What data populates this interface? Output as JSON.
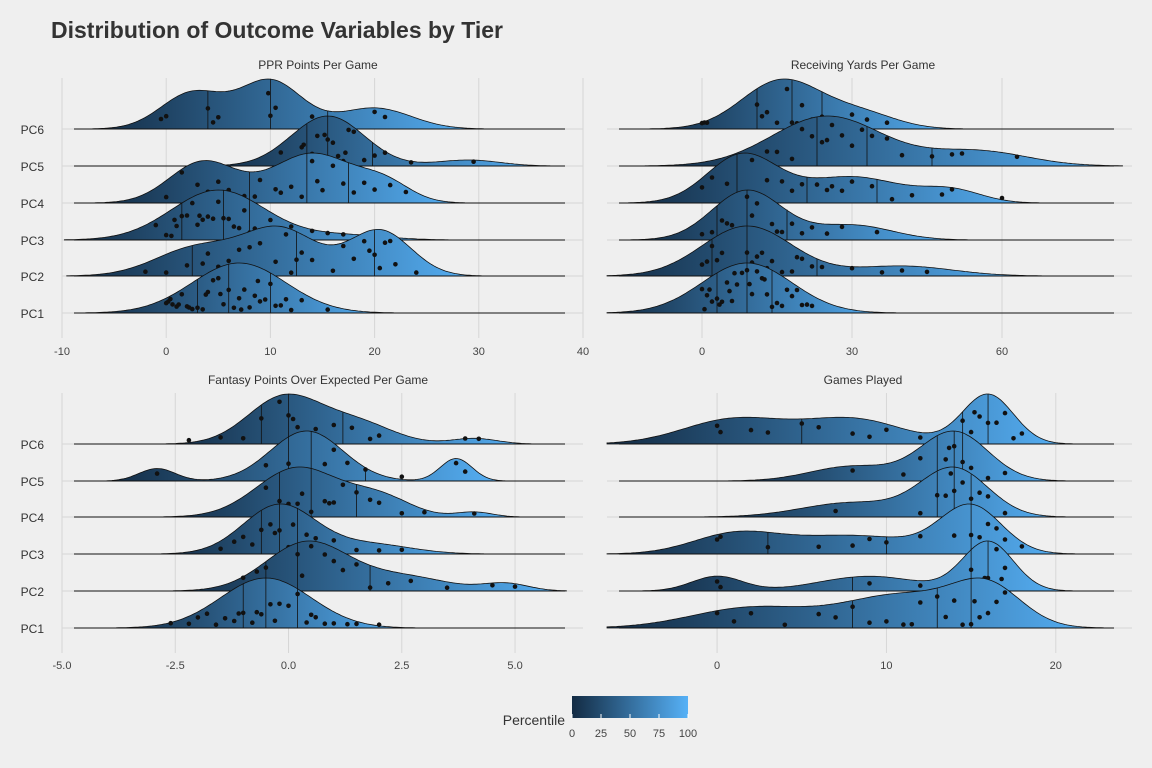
{
  "title": "Distribution of Outcome Variables by Tier",
  "legend": {
    "title": "Percentile",
    "ticks": [
      0,
      25,
      50,
      75,
      100
    ],
    "color_low": "#132b43",
    "color_high": "#56b1f7"
  },
  "chart_data": [
    {
      "type": "ridgeline",
      "title": "PPR Points Per Game",
      "categories": [
        "PC1",
        "PC2",
        "PC3",
        "PC4",
        "PC5",
        "PC6"
      ],
      "xlim": [
        -10,
        40
      ],
      "xticks": [
        -10,
        0,
        10,
        20,
        30,
        40
      ],
      "grid": true,
      "series": [
        {
          "name": "PC1",
          "components": [
            {
              "m": 7,
              "s": 4.5,
              "w": 1
            }
          ],
          "quartiles": [
            3,
            6,
            10
          ],
          "points": [
            0,
            0.4,
            1,
            1.5,
            2,
            2.5,
            3,
            3.5,
            4,
            4.5,
            5,
            5.5,
            6,
            6.5,
            7,
            7.5,
            8,
            8.5,
            9,
            9.5,
            10,
            10.5,
            11,
            12,
            13,
            15.5,
            0.6,
            2.2,
            3.8,
            5.2,
            7.2,
            8.8,
            11.5,
            0.2,
            1.2
          ]
        },
        {
          "name": "PC2",
          "components": [
            {
              "m": 3,
              "s": 4,
              "w": 0.5
            },
            {
              "m": 11,
              "s": 3.5,
              "w": 0.8
            },
            {
              "m": 20.5,
              "s": 3,
              "w": 0.8
            }
          ],
          "quartiles": [
            2.5,
            12.5,
            20
          ],
          "points": [
            0,
            2,
            3.5,
            5,
            6,
            7,
            9,
            10.5,
            11.5,
            12,
            12.5,
            13,
            14,
            16,
            17,
            18,
            19,
            19.5,
            20,
            20.5,
            21,
            21.5,
            22,
            24,
            -2,
            4,
            8
          ]
        },
        {
          "name": "PC3",
          "components": [
            {
              "m": 5,
              "s": 4.5,
              "w": 1
            },
            {
              "m": 17,
              "s": 4,
              "w": 0.1
            }
          ],
          "quartiles": [
            1.5,
            5.5,
            8
          ],
          "points": [
            0,
            0.5,
            1,
            1.5,
            2,
            2.5,
            3,
            3.5,
            4,
            4.5,
            5,
            5.5,
            6,
            6.5,
            7,
            7.5,
            8,
            8.5,
            10,
            12,
            14,
            15.5,
            17,
            -1,
            0.8,
            3.2
          ]
        },
        {
          "name": "PC4",
          "components": [
            {
              "m": 3.5,
              "s": 3.2,
              "w": 0.7
            },
            {
              "m": 14,
              "s": 4,
              "w": 0.85
            },
            {
              "m": 21,
              "s": 2.5,
              "w": 0.3
            }
          ],
          "quartiles": [
            8,
            13.5,
            17.5
          ],
          "points": [
            0,
            1.5,
            3,
            4,
            5,
            6,
            7.5,
            9,
            10.5,
            12,
            13,
            14,
            15,
            16,
            17,
            18,
            19,
            20,
            21.5,
            23,
            8.5,
            11,
            14.5
          ]
        },
        {
          "name": "PC5",
          "components": [
            {
              "m": 15.5,
              "s": 3.5,
              "w": 1
            },
            {
              "m": 29,
              "s": 3,
              "w": 0.12
            }
          ],
          "quartiles": [
            13.5,
            15.5,
            19.8
          ],
          "points": [
            11,
            12,
            13,
            14,
            14.5,
            15,
            15.5,
            16,
            16.5,
            17,
            17.5,
            18,
            19,
            20,
            21,
            23.5,
            29.5,
            13.2,
            15.2,
            17.2
          ]
        },
        {
          "name": "PC6",
          "components": [
            {
              "m": 2.5,
              "s": 3,
              "w": 0.6
            },
            {
              "m": 10,
              "s": 3,
              "w": 0.8
            },
            {
              "m": 20,
              "s": 3.5,
              "w": 0.35
            }
          ],
          "quartiles": [
            4,
            10,
            15.5
          ],
          "points": [
            0,
            4,
            4.5,
            10,
            10.5,
            14,
            16,
            20,
            21,
            -0.5,
            5,
            9.8
          ]
        }
      ]
    },
    {
      "type": "ridgeline",
      "title": "Receiving Yards Per Game",
      "categories": [
        "PC1",
        "PC2",
        "PC3",
        "PC4",
        "PC5",
        "PC6"
      ],
      "xlim": [
        -19,
        86
      ],
      "xticks": [
        0,
        30,
        60
      ],
      "grid": true,
      "series": [
        {
          "name": "PC1",
          "components": [
            {
              "m": 9,
              "s": 9,
              "w": 1
            }
          ],
          "quartiles": [
            3,
            9,
            14
          ],
          "points": [
            0,
            0.5,
            1,
            2,
            3,
            4,
            5,
            5.5,
            6,
            7,
            8,
            9,
            10,
            11,
            12,
            13,
            14,
            15,
            16,
            17,
            18,
            19,
            20,
            21,
            22,
            3.5,
            6.5,
            9.5,
            12.5,
            1.5
          ]
        },
        {
          "name": "PC2",
          "components": [
            {
              "m": 9,
              "s": 9,
              "w": 1
            },
            {
              "m": 40,
              "s": 10,
              "w": 0.2
            }
          ],
          "quartiles": [
            2,
            9,
            23
          ],
          "points": [
            0,
            1,
            2,
            4,
            6,
            8,
            9,
            10,
            11,
            12,
            14,
            16,
            18,
            20,
            22,
            24,
            30,
            36,
            40,
            45,
            3,
            7,
            13,
            19
          ]
        },
        {
          "name": "PC3",
          "components": [
            {
              "m": 9,
              "s": 7,
              "w": 1
            },
            {
              "m": 30,
              "s": 8,
              "w": 0.3
            }
          ],
          "quartiles": [
            3,
            9,
            17
          ],
          "points": [
            0,
            2,
            4,
            6,
            8,
            9,
            10,
            12,
            14,
            16,
            18,
            20,
            22,
            25,
            28,
            35,
            5,
            11,
            15
          ]
        },
        {
          "name": "PC4",
          "components": [
            {
              "m": 8,
              "s": 7,
              "w": 1
            },
            {
              "m": 30,
              "s": 10,
              "w": 0.55
            },
            {
              "m": 50,
              "s": 6,
              "w": 0.25
            }
          ],
          "quartiles": [
            7,
            21,
            35
          ],
          "points": [
            0,
            2,
            5,
            7,
            10,
            13,
            16,
            18,
            20,
            23,
            25,
            28,
            30,
            34,
            38,
            42,
            48,
            50,
            60,
            8,
            26
          ]
        },
        {
          "name": "PC5",
          "components": [
            {
              "m": 25,
              "s": 11,
              "w": 1
            },
            {
              "m": 55,
              "s": 10,
              "w": 0.3
            }
          ],
          "quartiles": [
            23,
            33,
            46
          ],
          "points": [
            13,
            15,
            18,
            20,
            22,
            24,
            26,
            28,
            30,
            32,
            34,
            40,
            46,
            50,
            52,
            63,
            25,
            37
          ]
        },
        {
          "name": "PC6",
          "components": [
            {
              "m": 16,
              "s": 8,
              "w": 1
            },
            {
              "m": 32,
              "s": 7,
              "w": 0.3
            }
          ],
          "quartiles": [
            11,
            18,
            24
          ],
          "points": [
            0,
            1,
            11,
            12,
            13,
            15,
            17,
            18,
            19,
            22,
            24,
            26,
            30,
            33,
            37,
            20,
            0.5
          ]
        }
      ]
    },
    {
      "type": "ridgeline",
      "title": "Fantasy Points Over Expected Per Game",
      "categories": [
        "PC1",
        "PC2",
        "PC3",
        "PC4",
        "PC5",
        "PC6"
      ],
      "xlim": [
        -5,
        6.5
      ],
      "xticks": [
        -5.0,
        -2.5,
        0.0,
        2.5,
        5.0
      ],
      "grid": true,
      "series": [
        {
          "name": "PC1",
          "components": [
            {
              "m": -0.5,
              "s": 1,
              "w": 1
            }
          ],
          "quartiles": [
            -1,
            -0.5,
            0.2
          ],
          "points": [
            -2.6,
            -2.2,
            -2,
            -1.8,
            -1.6,
            -1.4,
            -1.2,
            -1,
            -0.8,
            -0.6,
            -0.4,
            -0.2,
            0,
            0.2,
            0.4,
            0.6,
            0.8,
            1,
            1.3,
            1.5,
            2,
            -1.1,
            -0.3,
            0.5,
            -0.7
          ]
        },
        {
          "name": "PC2",
          "components": [
            {
              "m": 0.4,
              "s": 0.9,
              "w": 1
            },
            {
              "m": 2.5,
              "s": 1,
              "w": 0.3
            },
            {
              "m": 4.8,
              "s": 0.5,
              "w": 0.15
            }
          ],
          "quartiles": [
            -0.5,
            0.2,
            1.8
          ],
          "points": [
            -1,
            -0.5,
            -0.2,
            0,
            0.2,
            0.5,
            0.8,
            1,
            1.2,
            1.5,
            1.8,
            2.2,
            2.7,
            3.5,
            4.5,
            5,
            0.3,
            -0.7
          ]
        },
        {
          "name": "PC3",
          "components": [
            {
              "m": -0.2,
              "s": 0.8,
              "w": 1
            },
            {
              "m": 1.8,
              "s": 0.9,
              "w": 0.2
            }
          ],
          "quartiles": [
            -0.6,
            -0.2,
            0.2
          ],
          "points": [
            -1.5,
            -1.2,
            -1,
            -0.8,
            -0.6,
            -0.4,
            -0.2,
            0,
            0.2,
            0.4,
            0.6,
            0.8,
            1,
            1.5,
            2,
            2.5,
            -0.3,
            0.1
          ]
        },
        {
          "name": "PC4",
          "components": [
            {
              "m": 0.2,
              "s": 0.9,
              "w": 1
            },
            {
              "m": 2,
              "s": 0.7,
              "w": 0.4
            },
            {
              "m": 4.1,
              "s": 0.4,
              "w": 0.1
            }
          ],
          "quartiles": [
            -0.2,
            0.5,
            1.5
          ],
          "points": [
            -0.5,
            -0.2,
            0,
            0.2,
            0.5,
            0.8,
            1,
            1.2,
            1.5,
            1.8,
            2,
            2.5,
            3,
            4.1,
            0.3,
            0.9
          ]
        },
        {
          "name": "PC5",
          "components": [
            {
              "m": -2.9,
              "s": 0.4,
              "w": 0.25
            },
            {
              "m": 0.4,
              "s": 0.8,
              "w": 1
            },
            {
              "m": 3.7,
              "s": 0.35,
              "w": 0.45
            }
          ],
          "quartiles": [
            0,
            0.5,
            1.7
          ],
          "points": [
            -2.9,
            -0.5,
            0,
            0.3,
            0.5,
            0.8,
            1,
            1.3,
            1.7,
            2.5,
            3.7,
            3.9,
            0.2
          ]
        },
        {
          "name": "PC6",
          "components": [
            {
              "m": -0.1,
              "s": 0.8,
              "w": 1
            },
            {
              "m": 1.5,
              "s": 0.8,
              "w": 0.45
            },
            {
              "m": 4.1,
              "s": 0.5,
              "w": 0.12
            }
          ],
          "quartiles": [
            -0.6,
            0,
            1.2
          ],
          "points": [
            -2.2,
            -1.5,
            -1,
            -0.6,
            -0.2,
            0,
            0.2,
            0.6,
            1,
            1.4,
            1.8,
            2,
            3.9,
            4.2,
            0.1
          ]
        }
      ]
    },
    {
      "type": "ridgeline",
      "title": "Games Played",
      "categories": [
        "PC1",
        "PC2",
        "PC3",
        "PC4",
        "PC5",
        "PC6"
      ],
      "xlim": [
        -6.5,
        24.5
      ],
      "xticks": [
        0,
        10,
        20
      ],
      "grid": true,
      "series": [
        {
          "name": "PC1",
          "components": [
            {
              "m": 2,
              "s": 3.5,
              "w": 0.55
            },
            {
              "m": 11,
              "s": 3.5,
              "w": 0.9
            },
            {
              "m": 16,
              "s": 2,
              "w": 1
            }
          ],
          "quartiles": [
            8,
            13,
            15
          ],
          "points": [
            0,
            1,
            2,
            6,
            7,
            8,
            9,
            10,
            11,
            12,
            13,
            14,
            14.5,
            15,
            15.5,
            16,
            17,
            4,
            11.5,
            13.5,
            15.2,
            16.5
          ]
        },
        {
          "name": "PC2",
          "components": [
            {
              "m": 0,
              "s": 1.5,
              "w": 0.3
            },
            {
              "m": 9,
              "s": 3,
              "w": 0.3
            },
            {
              "m": 16,
              "s": 1.5,
              "w": 1
            }
          ],
          "quartiles": [
            8,
            15,
            16
          ],
          "points": [
            0,
            0.2,
            9,
            12,
            14,
            15,
            16,
            16.2,
            16.5,
            17,
            16.8,
            15.8
          ]
        },
        {
          "name": "PC3",
          "components": [
            {
              "m": 1,
              "s": 2.5,
              "w": 0.4
            },
            {
              "m": 8,
              "s": 4,
              "w": 0.4
            },
            {
              "m": 15,
              "s": 1.8,
              "w": 1
            }
          ],
          "quartiles": [
            3,
            10,
            15
          ],
          "points": [
            0,
            0.2,
            3,
            6,
            8,
            9,
            10,
            12,
            14,
            15,
            16,
            16.2,
            16.5,
            17,
            18,
            15.5
          ]
        },
        {
          "name": "PC4",
          "components": [
            {
              "m": 8,
              "s": 3,
              "w": 0.3
            },
            {
              "m": 14,
              "s": 2,
              "w": 1
            }
          ],
          "quartiles": [
            13,
            14,
            15
          ],
          "points": [
            7,
            12,
            13,
            13.5,
            14,
            14.2,
            14.5,
            15,
            15.5,
            16,
            17,
            13.8
          ]
        },
        {
          "name": "PC5",
          "components": [
            {
              "m": 8,
              "s": 2.5,
              "w": 0.3
            },
            {
              "m": 14,
              "s": 2,
              "w": 1
            }
          ],
          "quartiles": [
            13,
            14,
            14.5
          ],
          "points": [
            8,
            11,
            12,
            13,
            13.5,
            14,
            14.2,
            14.5,
            15,
            16,
            17,
            13.7
          ]
        },
        {
          "name": "PC6",
          "components": [
            {
              "m": 1,
              "s": 3,
              "w": 0.5
            },
            {
              "m": 8,
              "s": 3,
              "w": 0.5
            },
            {
              "m": 16,
              "s": 1.5,
              "w": 1
            }
          ],
          "quartiles": [
            5,
            14.5,
            16
          ],
          "points": [
            0,
            0.2,
            2,
            5,
            6,
            8,
            10,
            12,
            14,
            14.5,
            15,
            15.5,
            16,
            16.5,
            17,
            17.5,
            18,
            3,
            9,
            15.2
          ]
        }
      ]
    }
  ]
}
